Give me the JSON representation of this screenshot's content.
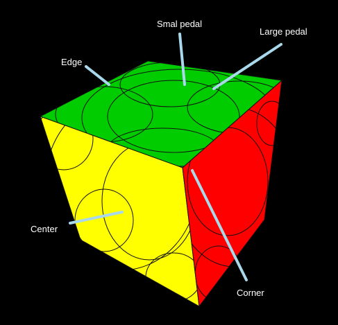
{
  "background": "#000000",
  "faces": {
    "top": {
      "name": "top-face",
      "color": "#00cc00"
    },
    "left": {
      "name": "left-face",
      "color": "#ffff00"
    },
    "right": {
      "name": "right-face",
      "color": "#ff0000"
    }
  },
  "pointer_color": "#a8d8ea",
  "annotations": [
    {
      "id": "edge",
      "text": "Edge"
    },
    {
      "id": "small-petal",
      "text": "Smal pedal"
    },
    {
      "id": "large-petal",
      "text": "Large pedal"
    },
    {
      "id": "center",
      "text": "Center"
    },
    {
      "id": "corner",
      "text": "Corner"
    }
  ]
}
